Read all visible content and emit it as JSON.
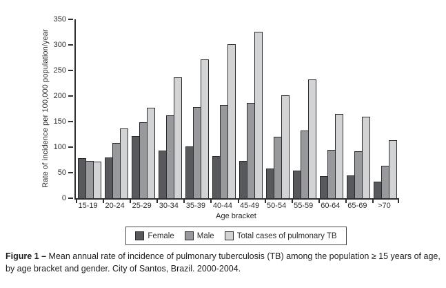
{
  "chart_data": {
    "type": "bar",
    "title": "",
    "categories": [
      "15-19",
      "20-24",
      "25-29",
      "30-34",
      "35-39",
      "40-44",
      "45-49",
      "50-54",
      "55-59",
      "60-64",
      "65-69",
      ">70"
    ],
    "series": [
      {
        "name": "Female",
        "color": "#58595c",
        "values": [
          78,
          80,
          122,
          93,
          102,
          83,
          73,
          58,
          54,
          43,
          45,
          33
        ]
      },
      {
        "name": "Male",
        "color": "#97999c",
        "values": [
          73,
          108,
          148,
          162,
          179,
          182,
          187,
          120,
          132,
          95,
          92,
          63
        ]
      },
      {
        "name": "Total cases of pulmonary TB",
        "color": "#d1d3d4",
        "values": [
          71,
          137,
          177,
          236,
          271,
          302,
          325,
          201,
          233,
          165,
          159,
          113
        ]
      }
    ],
    "xlabel": "Age bracket",
    "ylabel": "Rate of incidence per 100,000 population/year",
    "ylim": [
      0,
      350
    ],
    "yticks": [
      0,
      50,
      100,
      150,
      200,
      250,
      300,
      350
    ],
    "grid": false,
    "legend_position": "bottom",
    "axis_color": "#2f2f31"
  },
  "caption": {
    "label": "Figure 1 –",
    "text": " Mean annual rate of incidence of pulmonary tuberculosis (TB) among the population ≥ 15 years of age, by age bracket and gender. City of Santos, Brazil. 2000-2004."
  }
}
